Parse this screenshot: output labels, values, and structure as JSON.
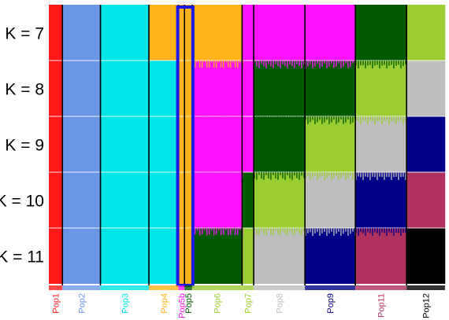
{
  "colors": {
    "red": "#FF1A1A",
    "cornflower": "#6A96E8",
    "cyan": "#00E5E5",
    "orange": "#FFB21A",
    "magenta": "#FF14FF",
    "darkgreen": "#005B00",
    "yellowgreen": "#9ACD32",
    "lightgray": "#BEBEBE",
    "navy": "#000088",
    "maroon": "#B03060",
    "black": "#000000",
    "highlight": "#1A1AE6"
  },
  "chart_data": {
    "type": "structure-admixture-barplot",
    "k_values": [
      "K = 7",
      "K = 8",
      "K = 9",
      "K = 10",
      "K = 11"
    ],
    "populations": [
      {
        "label": "Pop1",
        "color": "red",
        "share": 0.034
      },
      {
        "label": "Pop2",
        "color": "cornflower",
        "share": 0.095
      },
      {
        "label": "Pop3",
        "color": "cyan",
        "share": 0.121
      },
      {
        "label": "Pop4",
        "color": "orange",
        "share": 0.074
      },
      {
        "label": "Pop5b",
        "color": "magenta",
        "share": 0.015
      },
      {
        "label": "Pop5",
        "color": "darkgreen",
        "share": 0.019
      },
      {
        "label": "Pop6",
        "color": "yellowgreen",
        "share": 0.125
      },
      {
        "label": "Pop7",
        "color": "yellowgreen",
        "share": 0.029
      },
      {
        "label": "Pop8",
        "color": "lightgray",
        "share": 0.128
      },
      {
        "label": "Pop9",
        "color": "navy",
        "share": 0.126
      },
      {
        "label": "Pop11",
        "color": "maroon",
        "share": 0.128
      },
      {
        "label": "Pop12",
        "color": "black",
        "share": 0.096
      }
    ],
    "cluster_assignment": [
      [
        "red",
        "cornflower",
        "cyan",
        "orange",
        "orange",
        "orange",
        "orange",
        "magenta",
        "magenta",
        "magenta",
        "darkgreen",
        "yellowgreen"
      ],
      [
        "red",
        "cornflower",
        "cyan",
        "cyan",
        "orange",
        "orange",
        "magenta",
        "magenta",
        "darkgreen",
        "darkgreen",
        "yellowgreen",
        "lightgray"
      ],
      [
        "red",
        "cornflower",
        "cyan",
        "cyan",
        "orange",
        "orange",
        "magenta",
        "magenta",
        "darkgreen",
        "yellowgreen",
        "lightgray",
        "navy"
      ],
      [
        "red",
        "cornflower",
        "cyan",
        "cyan",
        "orange",
        "orange",
        "magenta",
        "darkgreen",
        "yellowgreen",
        "lightgray",
        "navy",
        "maroon"
      ],
      [
        "red",
        "cornflower",
        "cyan",
        "cyan",
        "orange",
        "orange",
        "darkgreen",
        "yellowgreen",
        "lightgray",
        "navy",
        "maroon",
        "black"
      ]
    ],
    "highlighted_population": "Pop5b"
  }
}
